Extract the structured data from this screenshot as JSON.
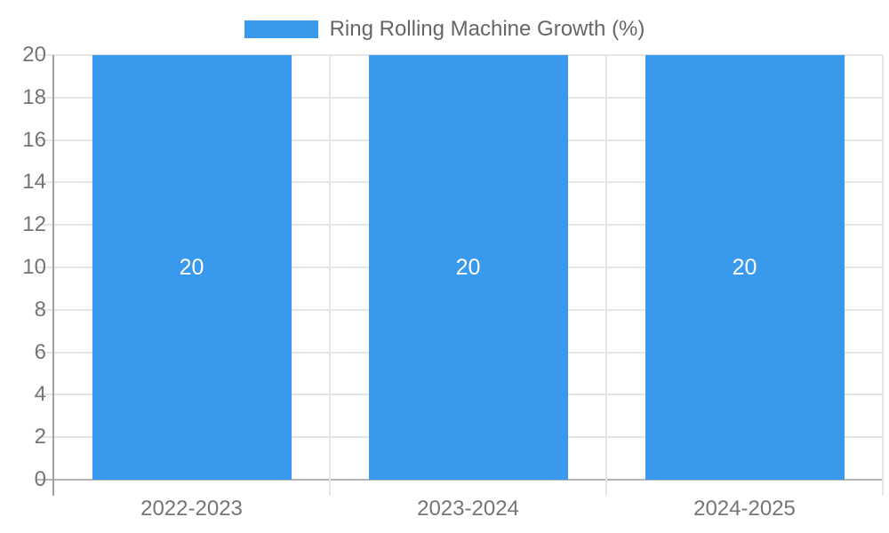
{
  "legend": {
    "label": "Ring Rolling Machine Growth (%)"
  },
  "colors": {
    "bar": "#3999ec",
    "bar_label": "#ffffff",
    "legend_text": "#666666",
    "tick_text": "#757575",
    "grid": "#e6e6e6",
    "zero_line": "#b3b3b3",
    "axis_line": "#a0a0a0",
    "background": "#ffffff"
  },
  "chart_data": {
    "type": "bar",
    "title": "Ring Rolling Machine Growth (%)",
    "categories": [
      "2022-2023",
      "2023-2024",
      "2024-2025"
    ],
    "values": [
      20,
      20,
      20
    ],
    "bar_labels": [
      "20",
      "20",
      "20"
    ],
    "xlabel": "",
    "ylabel": "",
    "ylim": [
      0,
      20
    ],
    "yticks": [
      0,
      2,
      4,
      6,
      8,
      10,
      12,
      14,
      16,
      18,
      20
    ],
    "grid": true,
    "legend_position": "top",
    "legend_entries": [
      "Ring Rolling Machine Growth (%)"
    ]
  }
}
